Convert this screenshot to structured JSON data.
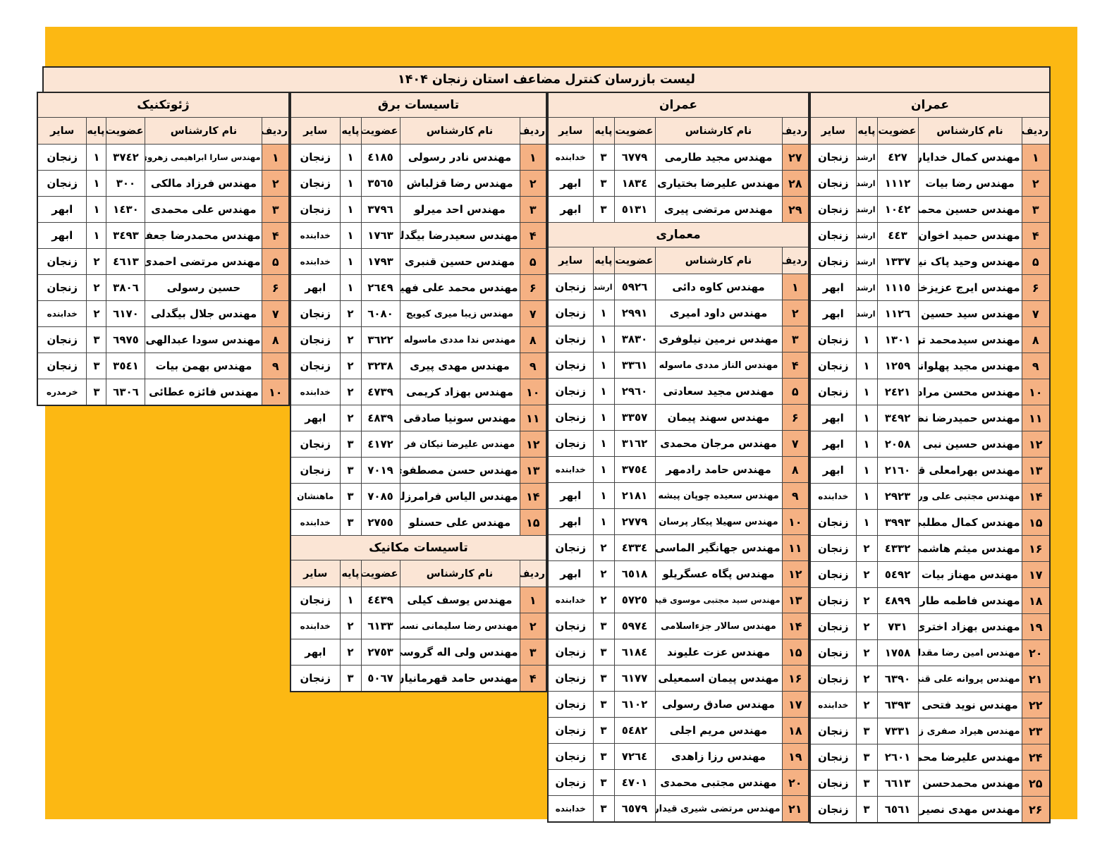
{
  "title": "لیست بازرسان کنترل مضاعف استان زنجان ۱۴۰۴",
  "colors": {
    "page_background": "#fcb813",
    "header_fill": "#fbe5d5",
    "row_number_fill": "#f5b183",
    "cell_fill": "#ffffff",
    "border": "#454545"
  },
  "columns": {
    "radif": "ردیف",
    "name": "نام کارشناس",
    "membership": "عضویت",
    "grade": "پایه",
    "other": "سایر"
  },
  "groups": [
    {
      "id": "omran-1",
      "sections": [
        {
          "title": "عمران",
          "rows": [
            [
              "۱",
              "مهندس کمال خدایاری",
              "٤۲۷",
              "ارشد",
              "زنجان"
            ],
            [
              "۲",
              "مهندس رضا بیات",
              "۱۱۱۲",
              "ارشد",
              "زنجان"
            ],
            [
              "۳",
              "مهندس حسین محمدی",
              "۱۰٤۲",
              "ارشد",
              "زنجان"
            ],
            [
              "۴",
              "مهندس حمید اخوان",
              "٤٤۳",
              "ارشد",
              "زنجان"
            ],
            [
              "۵",
              "مهندس وحید پاک نیت",
              "۱۳۳۷",
              "ارشد",
              "زنجان"
            ],
            [
              "۶",
              "مهندس ایرج عزیزخانی",
              "۱۱۱٥",
              "ارشد",
              "ابهر"
            ],
            [
              "۷",
              "مهندس سید حسین جاهد",
              "۱۱۲٦",
              "ارشد",
              "ابهر"
            ],
            [
              "۸",
              "مهندس سیدمحمد ترابی",
              "۱۳۰۱",
              "۱",
              "زنجان"
            ],
            [
              "۹",
              "مهندس مجید پهلوانی",
              "۱۲٥۹",
              "۱",
              "زنجان"
            ],
            [
              "۱۰",
              "مهندس محسن مرادی",
              "۲٤۲۱",
              "۱",
              "زنجان"
            ],
            [
              "۱۱",
              "مهندس حمیدرضا نظری",
              "۳٤۹۲",
              "۱",
              "ابهر"
            ],
            [
              "۱۲",
              "مهندس حسین نبی لو",
              "۲۰٥۸",
              "۱",
              "ابهر"
            ],
            [
              "۱۳",
              "مهندس بهرامعلی قنبری",
              "۲۱٦۰",
              "۱",
              "ابهر"
            ],
            [
              "۱۴",
              "مهندس مجتبی علی وردیلو",
              "۲۹۲۳",
              "۱",
              "خدابنده"
            ],
            [
              "۱۵",
              "مهندس کمال مطلبی",
              "۳۹۹۳",
              "۱",
              "زنجان"
            ],
            [
              "۱۶",
              "مهندس میثم هاشمی",
              "٤۳۳۲",
              "۲",
              "زنجان"
            ],
            [
              "۱۷",
              "مهندس مهناز بیات",
              "٥٤۹۲",
              "۲",
              "زنجان"
            ],
            [
              "۱۸",
              "مهندس فاطمه طارمی",
              "٤۸۹۹",
              "۲",
              "زنجان"
            ],
            [
              "۱۹",
              "مهندس بهزاد اختری",
              "۷۳۱",
              "۲",
              "زنجان"
            ],
            [
              "۲۰",
              "مهندس امین رضا مقدادی",
              "۱۷٥۸",
              "۲",
              "زنجان"
            ],
            [
              "۲۱",
              "مهندس پروانه علی قنبری",
              "٦۳۹۰",
              "۲",
              "زنجان"
            ],
            [
              "۲۲",
              "مهندس نوید فتحی",
              "٦۳۹۳",
              "۲",
              "خدابنده"
            ],
            [
              "۲۳",
              "مهندس هیراد صفری زنجانی",
              "۷۳۳۱",
              "۳",
              "زنجان"
            ],
            [
              "۲۴",
              "مهندس علیرضا محمدی",
              "۲٦۰۱",
              "۳",
              "زنجان"
            ],
            [
              "۲۵",
              "مهندس محمدحسن پوسانه",
              "٦٦۱۳",
              "۳",
              "زنجان"
            ],
            [
              "۲۶",
              "مهندس مهدی نصیری",
              "٦٥٦۱",
              "۳",
              "زنجان"
            ]
          ]
        }
      ]
    },
    {
      "id": "omran-2-memari",
      "sections": [
        {
          "title": "عمران",
          "rows": [
            [
              "۲۷",
              "مهندس مجید طارمی",
              "٦۷۷۹",
              "۳",
              "خدابنده"
            ],
            [
              "۲۸",
              "مهندس علیرضا بختیاری",
              "۱۸۳٤",
              "۳",
              "ابهر"
            ],
            [
              "۲۹",
              "مهندس مرتضی پیری",
              "٥۱۳۱",
              "۳",
              "ابهر"
            ]
          ]
        },
        {
          "title": "معماری",
          "rows": [
            [
              "۱",
              "مهندس کاوه دائی",
              "٥۹۲٦",
              "ارشد",
              "زنجان"
            ],
            [
              "۲",
              "مهندس داود امیری",
              "۲۹۹۱",
              "۱",
              "زنجان"
            ],
            [
              "۳",
              "مهندس نرمین نیلوفری",
              "۳۸۳۰",
              "۱",
              "زنجان"
            ],
            [
              "۴",
              "مهندس الناز مددی ماسوله",
              "۳۳٦۱",
              "۱",
              "زنجان"
            ],
            [
              "۵",
              "مهندس مجید سعادتی",
              "۲۹٦۰",
              "۱",
              "زنجان"
            ],
            [
              "۶",
              "مهندس سهند پیمان",
              "۳۳٥۷",
              "۱",
              "زنجان"
            ],
            [
              "۷",
              "مهندس مرجان محمدی",
              "۳۱٦۲",
              "۱",
              "زنجان"
            ],
            [
              "۸",
              "مهندس حامد رادمهر",
              "۳۷٥٤",
              "۱",
              "خدابنده"
            ],
            [
              "۹",
              "مهندس سعیده چوپان پیشه",
              "۲۱۸۱",
              "۱",
              "ابهر"
            ],
            [
              "۱۰",
              "مهندس سهیلا پیکار پرسان",
              "۲۷۷۹",
              "۱",
              "ابهر"
            ],
            [
              "۱۱",
              "مهندس جهانگیر الماسی",
              "٤۳۳٤",
              "۲",
              "زنجان"
            ],
            [
              "۱۲",
              "مهندس پگاه عسگریلو",
              "٦٥۱۸",
              "۲",
              "ابهر"
            ],
            [
              "۱۳",
              "مهندس سید مجتبی موسوی قیداری",
              "٥۷۲٥",
              "۲",
              "خدابنده"
            ],
            [
              "۱۴",
              "مهندس سالار جزءاسلامی",
              "٥۹۷٤",
              "۳",
              "زنجان"
            ],
            [
              "۱۵",
              "مهندس عزت علیوند",
              "٦۱۸٤",
              "۳",
              "زنجان"
            ],
            [
              "۱۶",
              "مهندس پیمان اسمعیلی",
              "٦۱۷۷",
              "۳",
              "زنجان"
            ],
            [
              "۱۷",
              "مهندس صادق رسولی",
              "٦۱۰۲",
              "۳",
              "زنجان"
            ],
            [
              "۱۸",
              "مهندس مریم اجلی",
              "٥٤۸۲",
              "۳",
              "زنجان"
            ],
            [
              "۱۹",
              "مهندس رزا زاهدی",
              "۷۲٦٤",
              "۳",
              "زنجان"
            ],
            [
              "۲۰",
              "مهندس مجتبی محمدی",
              "٤۷۰۱",
              "۳",
              "زنجان"
            ],
            [
              "۲۱",
              "مهندس مرتضی شیری قیداری",
              "٦٥۷۹",
              "۳",
              "خدابنده"
            ]
          ]
        }
      ]
    },
    {
      "id": "bargh-mekanik",
      "sections": [
        {
          "title": "تاسیسات برق",
          "rows": [
            [
              "۱",
              "مهندس نادر رسولی",
              "٤۱۸٥",
              "۱",
              "زنجان"
            ],
            [
              "۲",
              "مهندس رضا قزلباش",
              "۳٥٦٥",
              "۱",
              "زنجان"
            ],
            [
              "۳",
              "مهندس احد میرلو",
              "۳۷۹٦",
              "۱",
              "زنجان"
            ],
            [
              "۴",
              "مهندس سعیدرضا بیگدلی",
              "۱۷٦۳",
              "۱",
              "خدابنده"
            ],
            [
              "۵",
              "مهندس حسین قنبری",
              "۱۷۹۳",
              "۱",
              "خدابنده"
            ],
            [
              "۶",
              "مهندس محمد علی فهیم",
              "۲٦٤۹",
              "۱",
              "ابهر"
            ],
            [
              "۷",
              "مهندس زیبا میری کیویج",
              "٦۰۸۰",
              "۲",
              "زنجان"
            ],
            [
              "۸",
              "مهندس ندا مددی ماسوله",
              "۳٦۲۲",
              "۲",
              "زنجان"
            ],
            [
              "۹",
              "مهندس مهدی پیری",
              "۳۲۳۸",
              "۲",
              "زنجان"
            ],
            [
              "۱۰",
              "مهندس بهزاد کریمی",
              "٤۷۳۹",
              "۲",
              "خدابنده"
            ],
            [
              "۱۱",
              "مهندس سونیا صادقی",
              "٤۸۳۹",
              "۲",
              "ابهر"
            ],
            [
              "۱۲",
              "مهندس علیرضا نیکان فر",
              "٤۱۷۲",
              "۳",
              "زنجان"
            ],
            [
              "۱۳",
              "مهندس حسن مصطفوی",
              "۷۰۱۹",
              "۳",
              "زنجان"
            ],
            [
              "۱۴",
              "مهندس الیاس فرامرزلو",
              "۷۰۸٥",
              "۳",
              "ماهنشان"
            ],
            [
              "۱۵",
              "مهندس علی حسنلو",
              "۲۷٥٥",
              "۳",
              "خدابنده"
            ]
          ]
        },
        {
          "title": "تاسیسات مکانیک",
          "rows": [
            [
              "۱",
              "مهندس یوسف کیلی",
              "٤٤۳۹",
              "۱",
              "زنجان"
            ],
            [
              "۲",
              "مهندس رضا سلیمانی نسب",
              "٦۱۳۳",
              "۲",
              "خدابنده"
            ],
            [
              "۳",
              "مهندس ولی اله گروسی",
              "۲۷٥۳",
              "۲",
              "ابهر"
            ],
            [
              "۴",
              "مهندس حامد قهرمانیان",
              "٥۰٦۷",
              "۳",
              "زنجان"
            ]
          ]
        }
      ]
    },
    {
      "id": "geoteknik",
      "sections": [
        {
          "title": "ژئوتکنیک",
          "rows": [
            [
              "۱",
              "مهندس سارا ابراهیمی زهروی",
              "۳۷٤۲",
              "۱",
              "زنجان"
            ],
            [
              "۲",
              "مهندس فرزاد مالکی",
              "۳۰۰",
              "۱",
              "زنجان"
            ],
            [
              "۳",
              "مهندس علی محمدی",
              "۱٤۳۰",
              "۱",
              "ابهر"
            ],
            [
              "۴",
              "مهندس محمدرضا جعفری",
              "۳٤۹۳",
              "۱",
              "ابهر"
            ],
            [
              "۵",
              "مهندس مرتضی احمدی",
              "٤٦۱۳",
              "۲",
              "زنجان"
            ],
            [
              "۶",
              "حسین رسولی",
              "۳۸۰٦",
              "۲",
              "زنجان"
            ],
            [
              "۷",
              "مهندس جلال بیگدلی",
              "٦۱۷۰",
              "۲",
              "خدابنده"
            ],
            [
              "۸",
              "مهندس سودا عبدالهی",
              "٦۹۷٥",
              "۳",
              "زنجان"
            ],
            [
              "۹",
              "مهندس بهمن بیات",
              "۳٥٤۱",
              "۳",
              "زنجان"
            ],
            [
              "۱۰",
              "مهندس فائزه عطائی",
              "٦۳۰٦",
              "۳",
              "خرمدره"
            ]
          ]
        }
      ]
    }
  ]
}
